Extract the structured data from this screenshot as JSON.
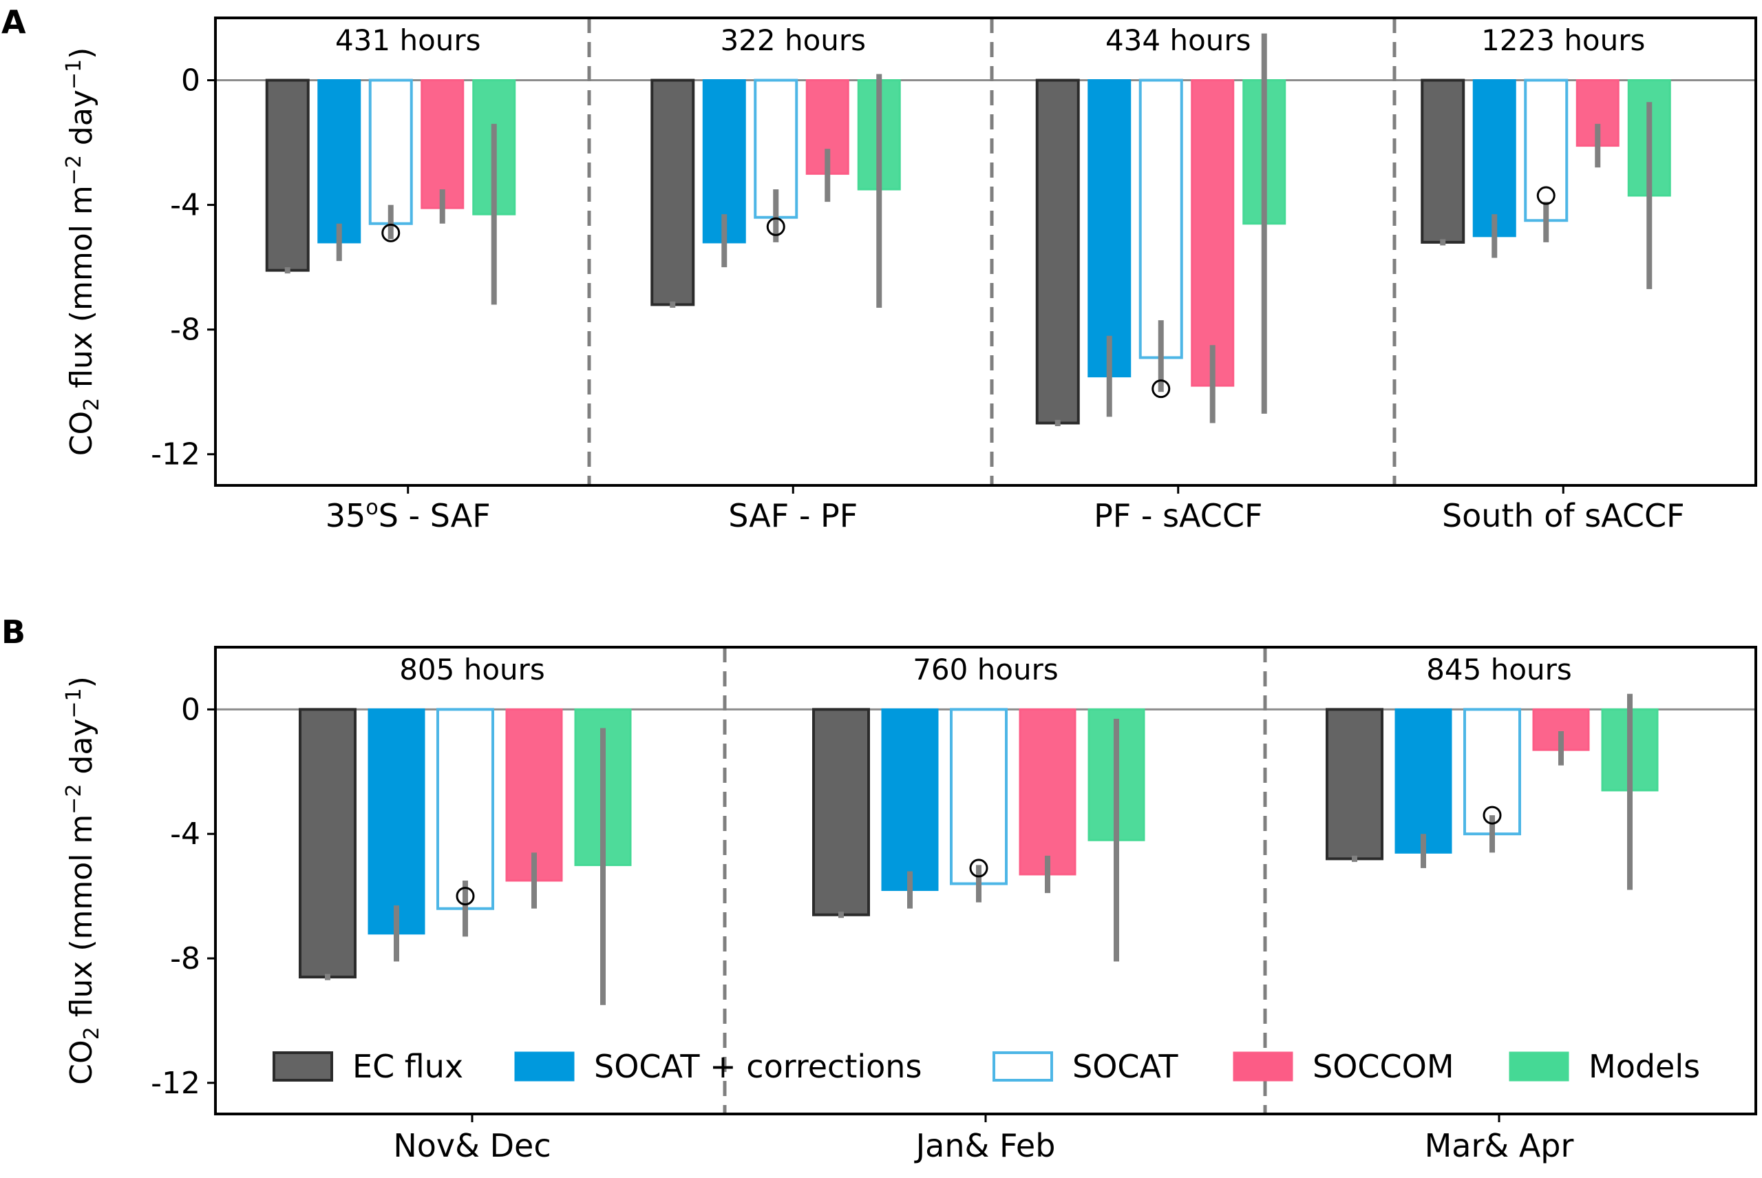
{
  "colors": {
    "ec": "#646464",
    "socat_corr": "#0099dd",
    "socat": "#4db6e6",
    "soccom": "#fc5c86",
    "models": "#45d995",
    "errorbar": "#808080",
    "divider": "#7f7f7f",
    "zero_line": "#8c8c8c"
  },
  "legend": {
    "position": "lower-center (panel B)",
    "entries": [
      {
        "label": "EC flux",
        "style": "filled",
        "color_key": "ec"
      },
      {
        "label": "SOCAT + corrections",
        "style": "filled",
        "color_key": "socat_corr"
      },
      {
        "label": "SOCAT",
        "style": "outline",
        "color_key": "socat"
      },
      {
        "label": "SOCCOM",
        "style": "filled",
        "color_key": "soccom"
      },
      {
        "label": "Models",
        "style": "filled",
        "color_key": "models"
      }
    ]
  },
  "chart_data": [
    {
      "type": "bar",
      "panel_label": "A",
      "ylabel_main": "CO",
      "ylabel_sub": "2",
      "ylabel_rest": " flux (mmol m",
      "ylabel_sup1": "−2",
      "ylabel_mid": " day",
      "ylabel_sup2": "−1",
      "ylabel_end": ")",
      "ylim": [
        -13,
        2
      ],
      "yticks": [
        0,
        -4,
        -8,
        -12
      ],
      "ytick_labels": [
        "0",
        "-4",
        "-8",
        "-12"
      ],
      "categories": [
        "35°S - SAF",
        "SAF - PF",
        "PF - sACCF",
        "South of sACCF"
      ],
      "category_labels": [
        {
          "main": "35",
          "sup": "o",
          "rest": "S - SAF"
        },
        {
          "main": "SAF - PF",
          "sup": "",
          "rest": ""
        },
        {
          "main": "PF - sACCF",
          "sup": "",
          "rest": ""
        },
        {
          "main": "South of sACCF",
          "sup": "",
          "rest": ""
        }
      ],
      "hours": [
        "431 hours",
        "322 hours",
        "434 hours",
        "1223 hours"
      ],
      "series": [
        {
          "name": "EC flux",
          "values": [
            -6.1,
            -7.2,
            -11.0,
            -5.2
          ],
          "err_low": [
            -6.2,
            -7.3,
            -11.1,
            -5.3
          ],
          "err_high": [
            -6.0,
            -7.1,
            -10.9,
            -5.1
          ]
        },
        {
          "name": "SOCAT + corrections",
          "values": [
            -5.2,
            -5.2,
            -9.5,
            -5.0
          ],
          "err_low": [
            -5.8,
            -6.0,
            -10.8,
            -5.7
          ],
          "err_high": [
            -4.6,
            -4.3,
            -8.2,
            -4.3
          ]
        },
        {
          "name": "SOCAT",
          "values": [
            -4.6,
            -4.4,
            -8.9,
            -4.5
          ],
          "err_low": [
            -5.1,
            -5.2,
            -10.0,
            -5.2
          ],
          "err_high": [
            -4.0,
            -3.5,
            -7.7,
            -3.9
          ],
          "circle": [
            -4.9,
            -4.7,
            -9.9,
            -3.7
          ]
        },
        {
          "name": "SOCCOM",
          "values": [
            -4.1,
            -3.0,
            -9.8,
            -2.1
          ],
          "err_low": [
            -4.6,
            -3.9,
            -11.0,
            -2.8
          ],
          "err_high": [
            -3.5,
            -2.2,
            -8.5,
            -1.4
          ]
        },
        {
          "name": "Models",
          "values": [
            -4.3,
            -3.5,
            -4.6,
            -3.7
          ],
          "err_low": [
            -7.2,
            -7.3,
            -10.7,
            -6.7
          ],
          "err_high": [
            -1.4,
            0.2,
            1.5,
            -0.7
          ]
        }
      ]
    },
    {
      "type": "bar",
      "panel_label": "B",
      "ylabel_main": "CO",
      "ylabel_sub": "2",
      "ylabel_rest": " flux (mmol m",
      "ylabel_sup1": "−2",
      "ylabel_mid": " day",
      "ylabel_sup2": "−1",
      "ylabel_end": ")",
      "ylim": [
        -13,
        2
      ],
      "yticks": [
        0,
        -4,
        -8,
        -12
      ],
      "ytick_labels": [
        "0",
        "-4",
        "-8",
        "-12"
      ],
      "categories": [
        "Nov& Dec",
        "Jan& Feb",
        "Mar& Apr"
      ],
      "category_labels": [
        {
          "main": "Nov& Dec",
          "sup": "",
          "rest": ""
        },
        {
          "main": "Jan& Feb",
          "sup": "",
          "rest": ""
        },
        {
          "main": "Mar& Apr",
          "sup": "",
          "rest": ""
        }
      ],
      "hours": [
        "805 hours",
        "760 hours",
        "845 hours"
      ],
      "series": [
        {
          "name": "EC flux",
          "values": [
            -8.6,
            -6.6,
            -4.8
          ],
          "err_low": [
            -8.7,
            -6.7,
            -4.9
          ],
          "err_high": [
            -8.5,
            -6.5,
            -4.7
          ]
        },
        {
          "name": "SOCAT + corrections",
          "values": [
            -7.2,
            -5.8,
            -4.6
          ],
          "err_low": [
            -8.1,
            -6.4,
            -5.1
          ],
          "err_high": [
            -6.3,
            -5.2,
            -4.0
          ]
        },
        {
          "name": "SOCAT",
          "values": [
            -6.4,
            -5.6,
            -4.0
          ],
          "err_low": [
            -7.3,
            -6.2,
            -4.6
          ],
          "err_high": [
            -5.5,
            -5.0,
            -3.4
          ],
          "circle": [
            -6.0,
            -5.1,
            -3.4
          ]
        },
        {
          "name": "SOCCOM",
          "values": [
            -5.5,
            -5.3,
            -1.3
          ],
          "err_low": [
            -6.4,
            -5.9,
            -1.8
          ],
          "err_high": [
            -4.6,
            -4.7,
            -0.7
          ]
        },
        {
          "name": "Models",
          "values": [
            -5.0,
            -4.2,
            -2.6
          ],
          "err_low": [
            -9.5,
            -8.1,
            -5.8
          ],
          "err_high": [
            -0.6,
            -0.3,
            0.5
          ]
        }
      ]
    }
  ]
}
